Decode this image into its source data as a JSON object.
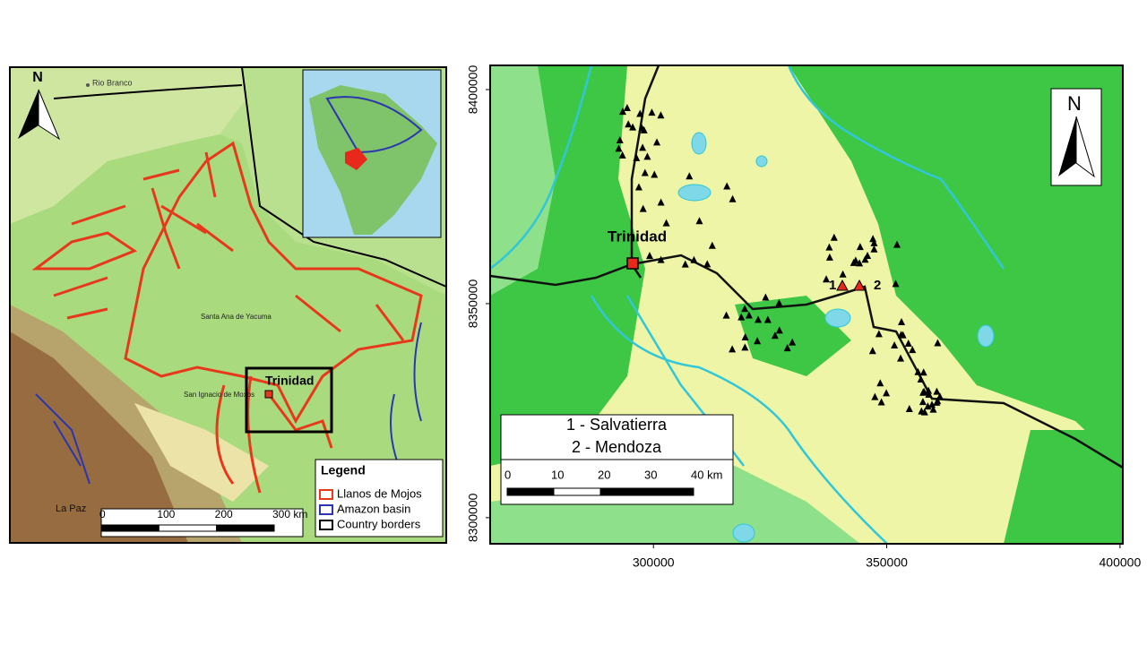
{
  "left_map": {
    "north": "N",
    "places": [
      "Rio Branco",
      "Santa Ana de Yacuma",
      "San Ignacio de Moxos",
      "La Paz"
    ],
    "highlight": "Trinidad",
    "legend": {
      "title": "Legend",
      "items": [
        "Llanos de Mojos",
        "Amazon basin",
        "Country borders"
      ]
    },
    "scale": [
      "0",
      "100",
      "200",
      "300 km"
    ]
  },
  "right_map": {
    "north": "N",
    "city": "Trinidad",
    "site_numbers": [
      "1",
      "2"
    ],
    "sites": [
      "1 - Salvatierra",
      "2 - Mendoza"
    ],
    "scale": [
      "0",
      "10",
      "20",
      "30",
      "40 km"
    ],
    "xlim": [
      265000,
      400600
    ],
    "ylim": [
      8293900,
      8405650
    ],
    "xticks": [
      300000,
      350000,
      400000
    ],
    "yticks": [
      8300000,
      8350000,
      8400000
    ]
  }
}
